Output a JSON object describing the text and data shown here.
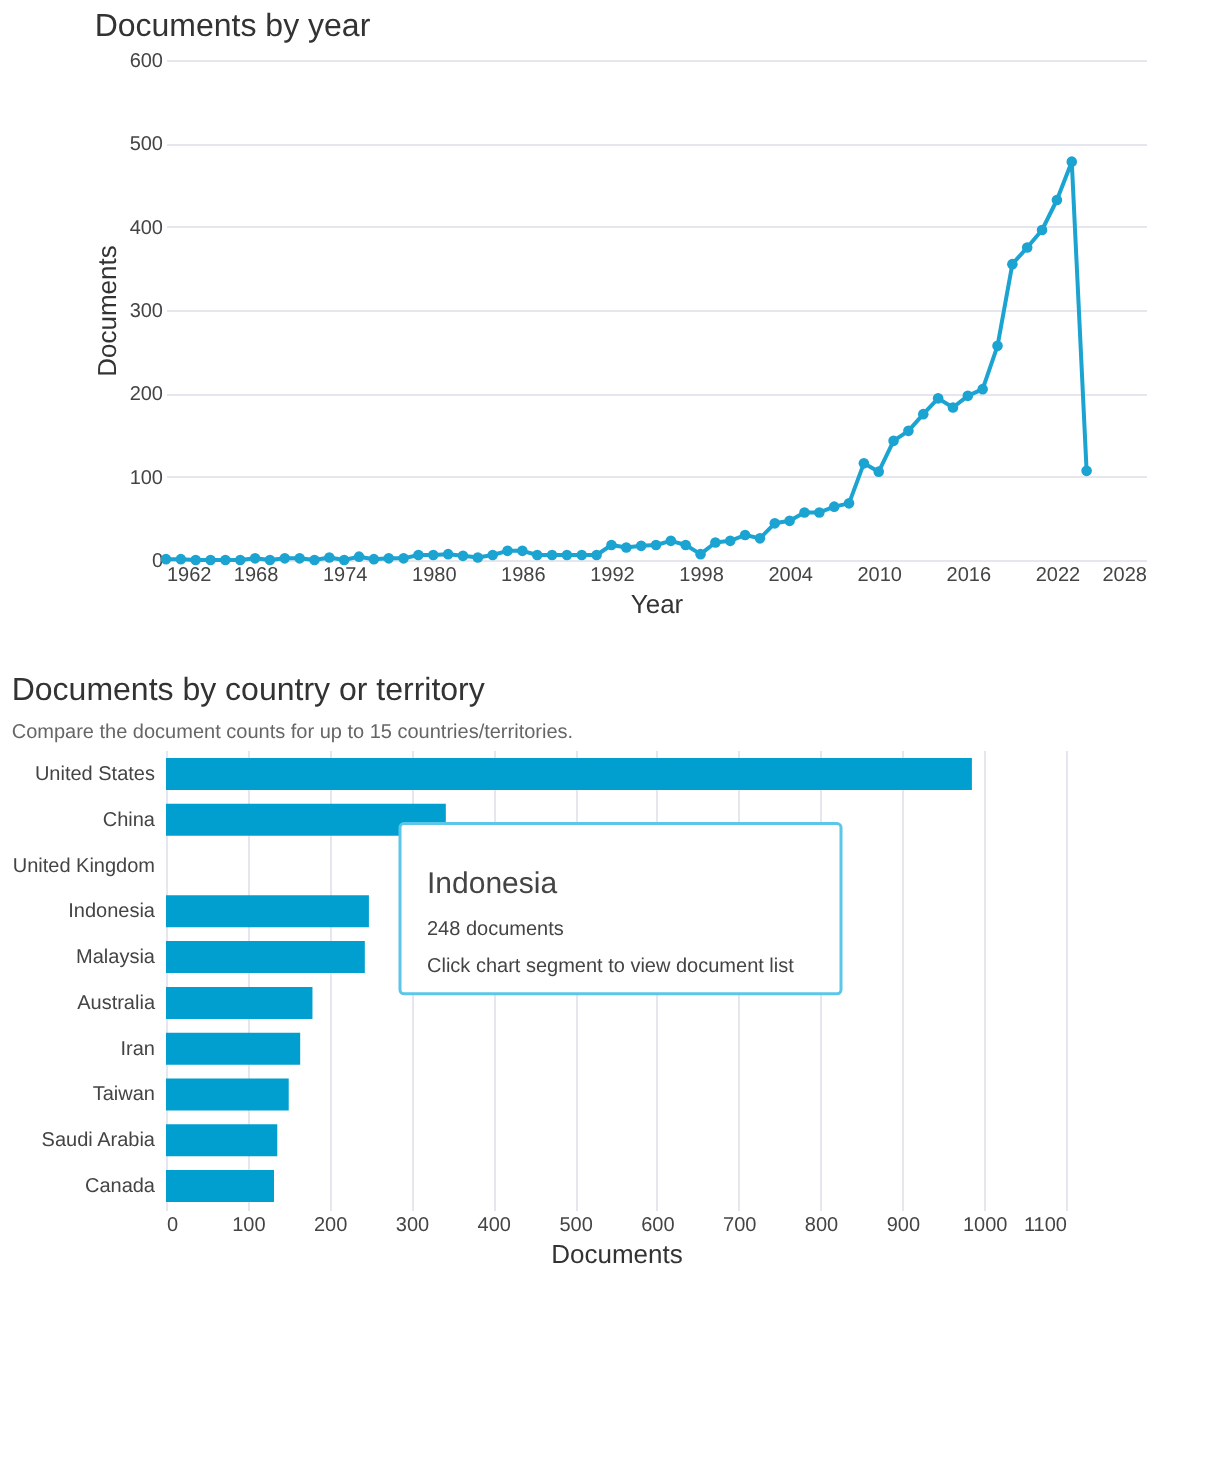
{
  "chart_data": [
    {
      "type": "line",
      "title": "Documents by year",
      "xlabel": "Year",
      "ylabel": "Documents",
      "color": "#1ba3d1",
      "marker": "circle",
      "grid": "y",
      "x": [
        1962,
        1963,
        1964,
        1965,
        1966,
        1967,
        1968,
        1969,
        1970,
        1971,
        1972,
        1973,
        1974,
        1975,
        1976,
        1977,
        1978,
        1979,
        1980,
        1981,
        1982,
        1983,
        1984,
        1985,
        1986,
        1987,
        1988,
        1989,
        1990,
        1991,
        1992,
        1993,
        1994,
        1995,
        1996,
        1997,
        1998,
        1999,
        2000,
        2001,
        2002,
        2003,
        2004,
        2005,
        2006,
        2007,
        2008,
        2009,
        2010,
        2011,
        2012,
        2013,
        2014,
        2015,
        2016,
        2017,
        2018,
        2019,
        2020,
        2021,
        2022,
        2023,
        2024
      ],
      "values": [
        1,
        1,
        0,
        0,
        0,
        0,
        2,
        0,
        2,
        2,
        0,
        3,
        0,
        4,
        1,
        2,
        2,
        6,
        6,
        7,
        5,
        3,
        6,
        11,
        11,
        6,
        6,
        6,
        6,
        6,
        18,
        15,
        17,
        18,
        23,
        18,
        7,
        21,
        23,
        30,
        26,
        44,
        47,
        57,
        57,
        64,
        68,
        116,
        106,
        143,
        155,
        175,
        194,
        183,
        197,
        205,
        257,
        355,
        375,
        396,
        432,
        478,
        107
      ],
      "xlim": [
        1962,
        2028
      ],
      "xticks": [
        1962,
        1968,
        1974,
        1980,
        1986,
        1992,
        1998,
        2004,
        2010,
        2016,
        2022,
        2028
      ],
      "ylim": [
        0,
        600
      ],
      "yticks": [
        0,
        100,
        200,
        300,
        400,
        500,
        600
      ]
    },
    {
      "type": "bar",
      "orientation": "horizontal",
      "title": "Documents by country or territory",
      "subtitle": "Compare the document counts for up to 15 countries/territories.",
      "xlabel": "Documents",
      "color": "#009fcf",
      "grid": "x",
      "categories": [
        "United States",
        "China",
        "United Kingdom",
        "Indonesia",
        "Malaysia",
        "Australia",
        "Iran",
        "Taiwan",
        "Saudi Arabia",
        "Canada"
      ],
      "values": [
        985,
        342,
        null,
        248,
        243,
        179,
        164,
        150,
        136,
        132
      ],
      "xlim": [
        0,
        1100
      ],
      "xticks": [
        0,
        100,
        200,
        300,
        400,
        500,
        600,
        700,
        800,
        900,
        1000,
        1100
      ],
      "annotations": [
        "Indonesia",
        "248 documents",
        "Click chart segment to view document list"
      ]
    }
  ]
}
